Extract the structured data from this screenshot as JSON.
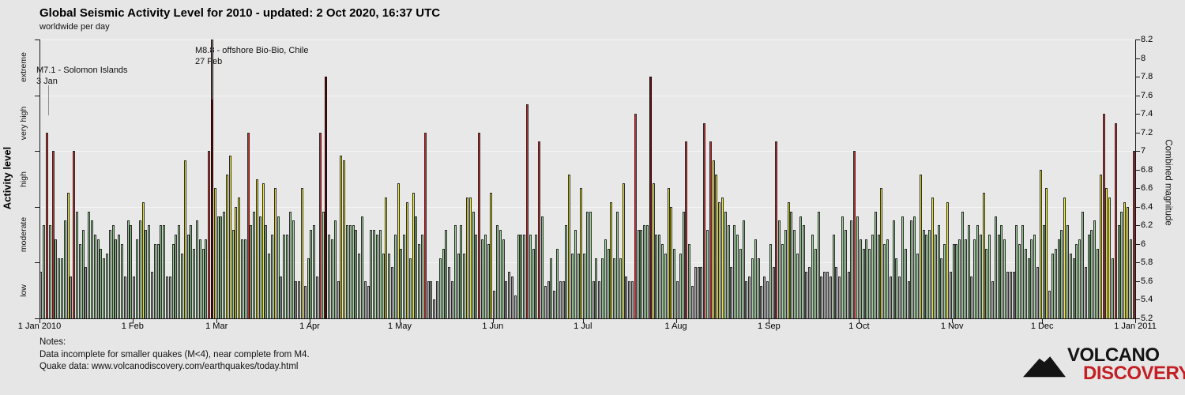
{
  "header": {
    "title": "Global Seismic Activity Level for 2010 - updated:  2 Oct 2020, 16:37 UTC",
    "subtitle": "worldwide per day"
  },
  "chart_data": {
    "type": "bar",
    "title": "Global Seismic Activity Level for 2010",
    "xlabel": "",
    "ylabel_left": "Activity level",
    "ylabel_right": "Combined magnitude",
    "y_axis_right": {
      "min": 5.2,
      "max": 8.2,
      "tick_step": 0.2
    },
    "clip_max": 8.2,
    "grid": true,
    "bar_border_color": "#2d2d2d",
    "activity_zones": [
      {
        "name": "low",
        "from": 5.2,
        "to": 5.8,
        "color": "#a9a9a9"
      },
      {
        "name": "moderate",
        "from": 5.8,
        "to": 6.4,
        "color": "#97d694"
      },
      {
        "name": "high",
        "from": 6.4,
        "to": 7.0,
        "color": "#f2ee1b"
      },
      {
        "name": "very high",
        "from": 7.0,
        "to": 7.6,
        "color": "#e02020"
      },
      {
        "name": "extreme",
        "from": 7.6,
        "to": 8.2,
        "color": "#6e1214"
      }
    ],
    "x_axis": {
      "month_labels": [
        "1 Jan 2010",
        "1 Feb",
        "1 Mar",
        "1 Apr",
        "1 May",
        "1 Jun",
        "1 Jul",
        "1 Aug",
        "1 Sep",
        "1 Oct",
        "1 Nov",
        "1 Dec",
        "1 Jan 2011"
      ],
      "month_day_offsets": [
        0,
        31,
        59,
        90,
        120,
        151,
        181,
        212,
        243,
        273,
        304,
        334,
        365
      ]
    },
    "series": [
      {
        "name": "combined magnitude per day (worldwide)",
        "start_date": "1 Jan 2010",
        "values": [
          5.7,
          6.2,
          7.2,
          6.2,
          7.0,
          6.05,
          5.85,
          5.85,
          6.25,
          6.55,
          5.65,
          7.0,
          6.35,
          6.0,
          6.15,
          5.75,
          6.35,
          6.25,
          6.1,
          6.05,
          5.95,
          5.85,
          5.9,
          6.15,
          6.2,
          6.05,
          6.1,
          6.0,
          5.65,
          6.25,
          6.2,
          5.65,
          6.05,
          6.25,
          6.45,
          6.15,
          6.2,
          5.7,
          6.0,
          6.0,
          6.2,
          6.2,
          5.65,
          5.65,
          6.0,
          6.1,
          6.2,
          5.9,
          6.9,
          6.1,
          6.2,
          5.95,
          6.25,
          6.05,
          5.95,
          6.05,
          7.0,
          8.8,
          6.6,
          6.3,
          6.3,
          6.35,
          6.75,
          6.95,
          6.15,
          6.4,
          6.5,
          6.05,
          6.05,
          7.2,
          6.2,
          6.35,
          6.7,
          6.3,
          6.65,
          6.2,
          5.9,
          6.1,
          6.6,
          6.3,
          5.65,
          6.1,
          6.1,
          6.35,
          6.25,
          5.6,
          5.6,
          6.6,
          5.55,
          5.85,
          6.15,
          6.2,
          5.65,
          7.2,
          6.35,
          7.8,
          6.1,
          6.05,
          6.25,
          5.6,
          6.95,
          6.9,
          6.2,
          6.2,
          6.2,
          6.15,
          5.9,
          6.3,
          5.6,
          5.55,
          6.15,
          6.15,
          6.1,
          6.15,
          5.9,
          6.5,
          5.9,
          5.75,
          6.1,
          6.65,
          5.95,
          6.1,
          6.45,
          5.85,
          6.55,
          6.3,
          6.0,
          6.1,
          7.2,
          5.6,
          5.6,
          5.4,
          5.6,
          5.85,
          5.95,
          6.15,
          5.75,
          5.6,
          6.2,
          5.9,
          6.2,
          5.9,
          6.5,
          6.5,
          6.35,
          6.1,
          7.2,
          6.05,
          6.1,
          6.0,
          6.55,
          5.5,
          6.2,
          6.15,
          6.05,
          5.6,
          5.7,
          5.65,
          5.45,
          6.1,
          6.1,
          6.1,
          7.5,
          6.1,
          5.95,
          6.1,
          7.1,
          6.3,
          5.55,
          5.6,
          5.85,
          5.5,
          5.95,
          5.6,
          5.6,
          6.2,
          6.75,
          5.9,
          6.15,
          5.9,
          6.6,
          5.9,
          6.35,
          6.35,
          5.6,
          5.85,
          5.6,
          5.85,
          6.05,
          5.95,
          6.45,
          5.85,
          6.35,
          5.85,
          6.65,
          5.65,
          5.6,
          5.6,
          7.4,
          6.15,
          6.15,
          6.2,
          6.2,
          7.8,
          6.65,
          6.1,
          6.1,
          6.0,
          5.9,
          6.6,
          6.4,
          5.95,
          5.6,
          5.9,
          6.35,
          7.1,
          6.0,
          5.55,
          5.75,
          5.75,
          5.75,
          7.3,
          6.15,
          7.1,
          6.9,
          6.75,
          6.45,
          6.5,
          6.35,
          6.2,
          5.75,
          6.2,
          6.1,
          5.95,
          6.25,
          5.6,
          5.65,
          5.85,
          6.05,
          5.85,
          5.55,
          5.65,
          5.6,
          6.0,
          5.75,
          7.1,
          6.25,
          6.0,
          6.15,
          6.45,
          6.35,
          6.15,
          5.9,
          6.3,
          6.2,
          5.7,
          5.75,
          6.1,
          5.95,
          6.35,
          5.65,
          5.7,
          5.7,
          5.65,
          6.1,
          5.75,
          5.65,
          6.3,
          6.15,
          5.7,
          6.25,
          7.0,
          6.3,
          6.05,
          5.95,
          6.05,
          5.95,
          6.1,
          6.35,
          6.1,
          6.6,
          6.0,
          6.05,
          5.65,
          6.25,
          5.85,
          5.65,
          6.3,
          5.95,
          5.6,
          6.25,
          6.3,
          5.9,
          6.75,
          6.15,
          6.1,
          6.15,
          6.5,
          6.1,
          6.2,
          5.85,
          6.0,
          6.45,
          5.7,
          6.0,
          6.0,
          6.05,
          6.35,
          6.05,
          6.2,
          5.65,
          6.05,
          6.2,
          6.1,
          6.55,
          5.95,
          6.1,
          5.6,
          6.3,
          6.1,
          6.2,
          6.05,
          5.7,
          5.7,
          5.7,
          6.2,
          6.0,
          6.2,
          5.95,
          5.85,
          6.05,
          6.1,
          5.75,
          6.8,
          6.2,
          6.6,
          5.5,
          5.9,
          5.95,
          6.05,
          6.15,
          6.5,
          6.2,
          5.9,
          5.85,
          6.0,
          6.05,
          6.35,
          5.75,
          6.1,
          6.15,
          6.25,
          5.95,
          6.75,
          7.4,
          6.6,
          6.5,
          5.85,
          7.3,
          6.2,
          6.35,
          6.45,
          6.4,
          6.05,
          7.0
        ]
      }
    ],
    "annotations": [
      {
        "line1": "M7.1 - Solomon Islands",
        "line2": "3 Jan",
        "day_index": 2
      },
      {
        "line1": "M8.8 - offshore Bio-Bio, Chile",
        "line2": "27 Feb",
        "day_index": 57
      }
    ]
  },
  "footer": {
    "notes_label": "Notes:",
    "note1": "Data incomplete for smaller quakes (M<4), near complete from M4.",
    "note2": "Quake data: www.volcanodiscovery.com/earthquakes/today.html"
  },
  "logo": {
    "line1": "VOLCANO",
    "line2": "DISCOVERY",
    "color1": "#141414",
    "color2": "#c41f23"
  }
}
